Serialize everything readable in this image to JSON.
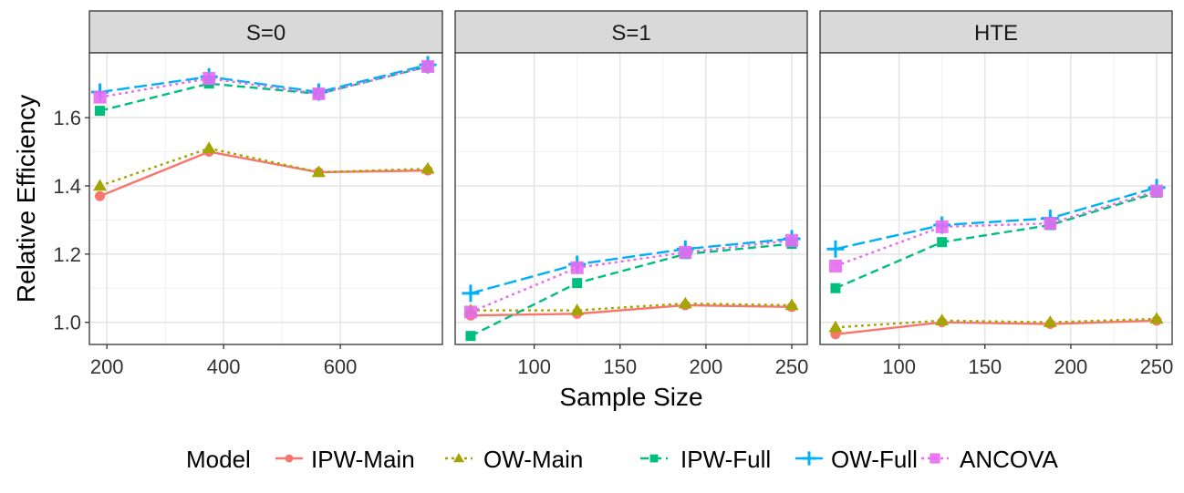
{
  "chart_data": {
    "type": "line",
    "ylabel": "Relative Efficiency",
    "xlabel": "Sample Size",
    "ylim": [
      0.935,
      1.79
    ],
    "y_ticks": [
      1.0,
      1.2,
      1.4,
      1.6
    ],
    "y_tick_labels": [
      "1.0",
      "1.2",
      "1.4",
      "1.6"
    ],
    "grid": true,
    "legend": {
      "title": "Model",
      "position": "bottom",
      "entries": [
        "IPW-Main",
        "OW-Main",
        "IPW-Full",
        "OW-Full",
        "ANCOVA"
      ]
    },
    "series_styles": [
      {
        "name": "IPW-Main",
        "color": "#F8766D",
        "dash": "solid",
        "marker": "circle"
      },
      {
        "name": "OW-Main",
        "color": "#A3A500",
        "dash": "dotted",
        "marker": "triangle"
      },
      {
        "name": "IPW-Full",
        "color": "#00BF7D",
        "dash": "dashed",
        "marker": "square"
      },
      {
        "name": "OW-Full",
        "color": "#00B0F6",
        "dash": "longdash",
        "marker": "plus"
      },
      {
        "name": "ANCOVA",
        "color": "#E76BF3",
        "dash": "dotted",
        "marker": "squarebox"
      }
    ],
    "panels": [
      {
        "strip": "S=0",
        "xlim": [
          170,
          775
        ],
        "x_ticks": [
          200,
          400,
          600
        ],
        "x_tick_labels": [
          "200",
          "400",
          "600"
        ],
        "x": [
          188,
          375,
          563,
          750
        ],
        "series": [
          {
            "name": "IPW-Main",
            "values": [
              1.37,
              1.5,
              1.44,
              1.445
            ]
          },
          {
            "name": "OW-Main",
            "values": [
              1.4,
              1.51,
              1.44,
              1.45
            ]
          },
          {
            "name": "IPW-Full",
            "values": [
              1.62,
              1.7,
              1.67,
              1.75
            ]
          },
          {
            "name": "OW-Full",
            "values": [
              1.675,
              1.72,
              1.675,
              1.755
            ]
          },
          {
            "name": "ANCOVA",
            "values": [
              1.66,
              1.715,
              1.67,
              1.75
            ]
          }
        ]
      },
      {
        "strip": "S=1",
        "xlim": [
          54,
          259
        ],
        "x_ticks": [
          100,
          150,
          200,
          250
        ],
        "x_tick_labels": [
          "100",
          "150",
          "200",
          "250"
        ],
        "x": [
          63,
          125,
          188,
          250
        ],
        "series": [
          {
            "name": "IPW-Main",
            "values": [
              1.02,
              1.025,
              1.05,
              1.045
            ]
          },
          {
            "name": "OW-Main",
            "values": [
              1.035,
              1.035,
              1.055,
              1.05
            ]
          },
          {
            "name": "IPW-Full",
            "values": [
              0.96,
              1.115,
              1.2,
              1.23
            ]
          },
          {
            "name": "OW-Full",
            "values": [
              1.085,
              1.17,
              1.215,
              1.245
            ]
          },
          {
            "name": "ANCOVA",
            "values": [
              1.03,
              1.16,
              1.205,
              1.24
            ]
          }
        ]
      },
      {
        "strip": "HTE",
        "xlim": [
          54,
          259
        ],
        "x_ticks": [
          100,
          150,
          200,
          250
        ],
        "x_tick_labels": [
          "100",
          "150",
          "200",
          "250"
        ],
        "x": [
          63,
          125,
          188,
          250
        ],
        "series": [
          {
            "name": "IPW-Main",
            "values": [
              0.965,
              1.0,
              0.995,
              1.005
            ]
          },
          {
            "name": "OW-Main",
            "values": [
              0.985,
              1.005,
              1.0,
              1.01
            ]
          },
          {
            "name": "IPW-Full",
            "values": [
              1.1,
              1.235,
              1.285,
              1.38
            ]
          },
          {
            "name": "OW-Full",
            "values": [
              1.215,
              1.285,
              1.305,
              1.395
            ]
          },
          {
            "name": "ANCOVA",
            "values": [
              1.165,
              1.28,
              1.29,
              1.385
            ]
          }
        ]
      }
    ]
  }
}
